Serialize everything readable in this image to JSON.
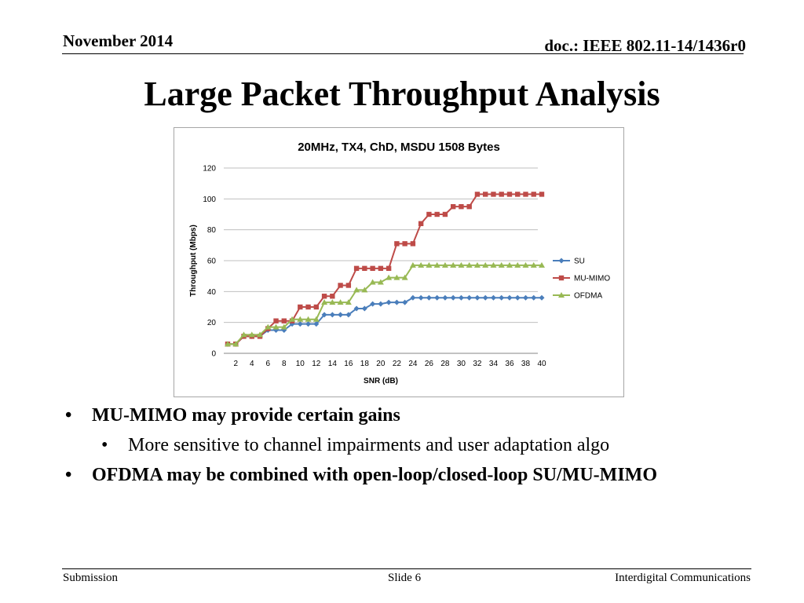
{
  "header": {
    "date": "November 2014",
    "doc": "doc.: IEEE 802.11-14/1436r0"
  },
  "title": "Large Packet Throughput Analysis",
  "bullets": {
    "item1": "MU-MIMO may provide certain gains",
    "item1_sub": "More sensitive to channel impairments and user adaptation algo",
    "item2": "OFDMA may be combined with open-loop/closed-loop SU/MU-MIMO",
    "marker": "•"
  },
  "footer": {
    "left": "Submission",
    "center": "Slide 6",
    "right": "Interdigital Communications"
  },
  "chart_data": {
    "type": "line",
    "title": "20MHz, TX4, ChD, MSDU 1508 Bytes",
    "xlabel": "SNR (dB)",
    "ylabel": "Throughput (Mbps)",
    "ylim": [
      0,
      120
    ],
    "yticks": [
      0,
      20,
      40,
      60,
      80,
      100,
      120
    ],
    "grid": true,
    "legend": "right",
    "x": [
      1,
      2,
      3,
      4,
      5,
      6,
      7,
      8,
      9,
      10,
      11,
      12,
      13,
      14,
      15,
      16,
      17,
      18,
      19,
      20,
      21,
      22,
      23,
      24,
      25,
      26,
      27,
      28,
      29,
      30,
      31,
      32,
      33,
      34,
      35,
      36,
      37,
      38,
      39,
      40
    ],
    "xticklabels": [
      "2",
      "4",
      "6",
      "8",
      "10",
      "12",
      "14",
      "16",
      "18",
      "20",
      "22",
      "24",
      "26",
      "28",
      "30",
      "32",
      "34",
      "36",
      "38",
      "40"
    ],
    "series": [
      {
        "name": "SU",
        "color": "#4a7ebb",
        "marker": "diamond",
        "values": [
          6,
          6,
          11,
          11,
          11,
          15,
          15,
          15,
          19,
          19,
          19,
          19,
          25,
          25,
          25,
          25,
          29,
          29,
          32,
          32,
          33,
          33,
          33,
          36,
          36,
          36,
          36,
          36,
          36,
          36,
          36,
          36,
          36,
          36,
          36,
          36,
          36,
          36,
          36,
          36
        ]
      },
      {
        "name": "MU-MIMO",
        "color": "#be4b48",
        "marker": "square",
        "values": [
          6,
          6,
          11,
          11,
          11,
          16,
          21,
          21,
          21,
          30,
          30,
          30,
          37,
          37,
          44,
          44,
          55,
          55,
          55,
          55,
          55,
          71,
          71,
          71,
          84,
          90,
          90,
          90,
          95,
          95,
          95,
          103,
          103,
          103,
          103,
          103,
          103,
          103,
          103,
          103
        ]
      },
      {
        "name": "OFDMA",
        "color": "#98b954",
        "marker": "triangle",
        "values": [
          6,
          6,
          12,
          12,
          12,
          17,
          17,
          17,
          22,
          22,
          22,
          22,
          33,
          33,
          33,
          33,
          41,
          41,
          46,
          46,
          49,
          49,
          49,
          57,
          57,
          57,
          57,
          57,
          57,
          57,
          57,
          57,
          57,
          57,
          57,
          57,
          57,
          57,
          57,
          57
        ]
      }
    ]
  }
}
